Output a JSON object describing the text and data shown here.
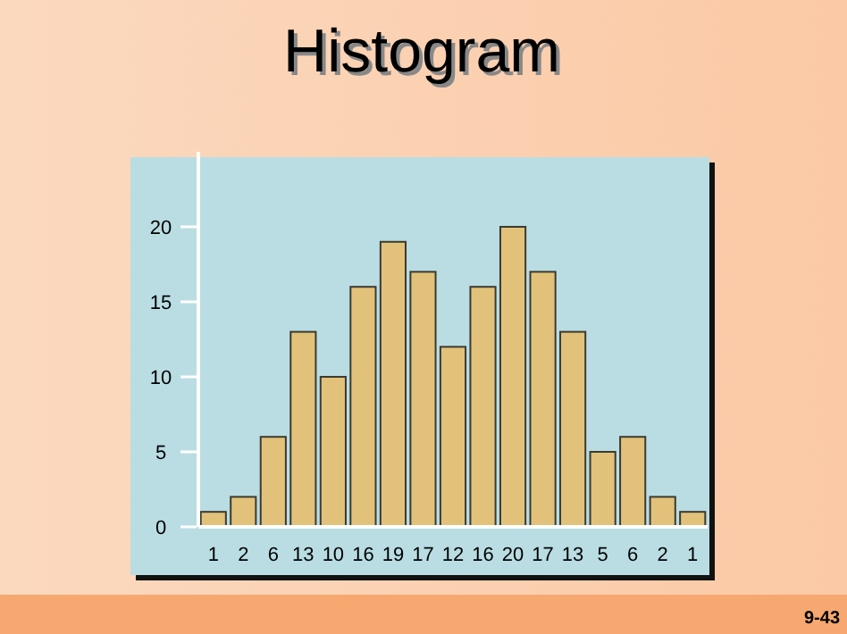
{
  "chart_data": {
    "type": "bar",
    "title": "Histogram",
    "categories": [
      null,
      null,
      null,
      null,
      null,
      null,
      null,
      null,
      null,
      null,
      null,
      null,
      null,
      null,
      null,
      null,
      null
    ],
    "values": [
      1,
      2,
      6,
      13,
      10,
      16,
      19,
      17,
      12,
      16,
      20,
      17,
      13,
      5,
      6,
      2,
      1
    ],
    "color": "#e2c27a",
    "data_labels": true,
    "ylim": [
      0,
      25
    ],
    "yticks": [
      0,
      5,
      10,
      15,
      20
    ],
    "grid": false,
    "annotations": [
      "9-43"
    ]
  }
}
